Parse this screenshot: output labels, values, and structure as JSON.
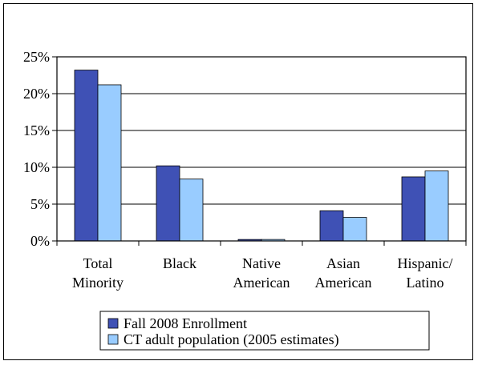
{
  "chart_data": {
    "type": "bar",
    "categories": [
      [
        "Total",
        "Minority"
      ],
      [
        "Black"
      ],
      [
        "Native",
        "American"
      ],
      [
        "Asian",
        "American"
      ],
      [
        "Hispanic/",
        "Latino"
      ]
    ],
    "series": [
      {
        "name": "Fall 2008 Enrollment",
        "values": [
          23.2,
          10.2,
          0.2,
          4.1,
          8.7
        ],
        "color": "#3f51b5"
      },
      {
        "name": "CT adult population (2005 estimates)",
        "values": [
          21.2,
          8.4,
          0.2,
          3.2,
          9.5
        ],
        "color": "#99ccff"
      }
    ],
    "yticks": [
      "0%",
      "5%",
      "10%",
      "15%",
      "20%",
      "25%"
    ],
    "ylim": [
      0,
      25
    ],
    "grid": true,
    "legend_position": "bottom"
  }
}
